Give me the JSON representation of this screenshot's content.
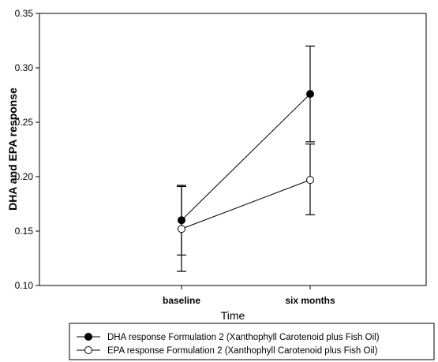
{
  "chart_data": {
    "type": "line",
    "categories": [
      "baseline",
      "six months"
    ],
    "xlabel": "Time",
    "ylabel": "DHA and EPA response",
    "ylim": [
      0.1,
      0.35
    ],
    "yticks": [
      "0.10",
      "0.15",
      "0.20",
      "0.25",
      "0.30",
      "0.35"
    ],
    "grid": false,
    "legend_position": "bottom",
    "series": [
      {
        "name": "DHA response Formulation 2 (Xanthophyll Carotenoid plus Fish Oil)",
        "marker": "filled-circle",
        "color": "#000000",
        "values": [
          0.16,
          0.276
        ],
        "error_low": [
          0.128,
          0.232
        ],
        "error_high": [
          0.191,
          0.32
        ]
      },
      {
        "name": "EPA response Formulation 2 (Xanthophyll Carotenoid plus Fish Oil)",
        "marker": "open-circle",
        "color": "#000000",
        "values": [
          0.152,
          0.197
        ],
        "error_low": [
          0.113,
          0.165
        ],
        "error_high": [
          0.192,
          0.23
        ]
      }
    ]
  }
}
